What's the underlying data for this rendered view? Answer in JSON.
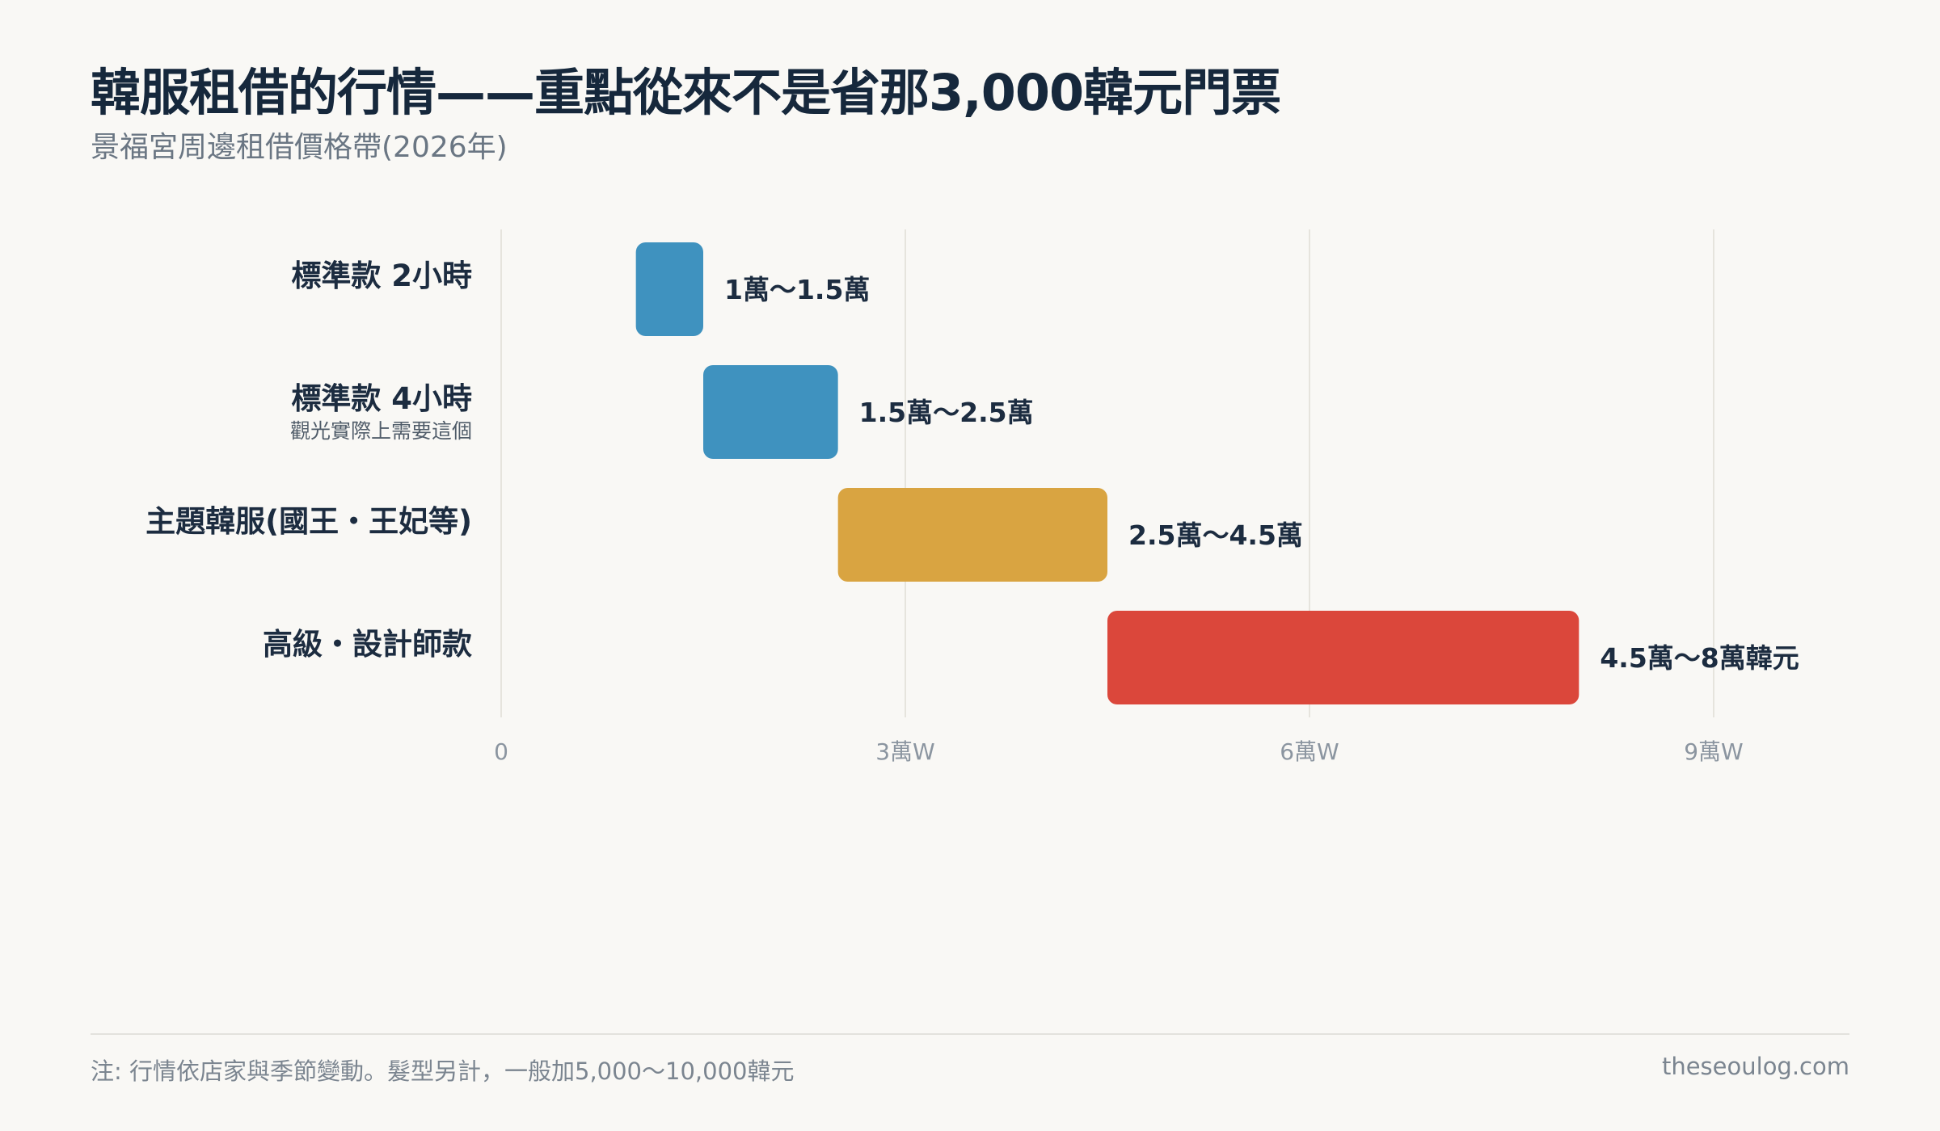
{
  "title": "韓服租借的行情——重點從來不是省那3,000韓元門票",
  "subtitle": "景福宮周邊租借價格帶(2026年)",
  "footer": {
    "note": "注: 行情依店家與季節變動。髮型另計，一般加5,000〜10,000韓元",
    "site": "theseoulog.com"
  },
  "chart_data": {
    "type": "bar",
    "orientation": "horizontal-range",
    "categories": [
      {
        "label": "標準款 2小時",
        "sublabel": ""
      },
      {
        "label": "標準款 4小時",
        "sublabel": "觀光實際上需要這個"
      },
      {
        "label": "主題韓服(國王・王妃等)",
        "sublabel": ""
      },
      {
        "label": "高級・設計師款",
        "sublabel": ""
      }
    ],
    "ranges": [
      {
        "low": 10000,
        "high": 15000,
        "label": "1萬〜1.5萬",
        "color": "#3f92bf"
      },
      {
        "low": 15000,
        "high": 25000,
        "label": "1.5萬〜2.5萬",
        "color": "#3f92bf"
      },
      {
        "low": 25000,
        "high": 45000,
        "label": "2.5萬〜4.5萬",
        "color": "#d9a441"
      },
      {
        "low": 45000,
        "high": 80000,
        "label": "4.5萬〜8萬韓元",
        "color": "#db473b"
      }
    ],
    "x_ticks": [
      {
        "value": 0,
        "label": "0"
      },
      {
        "value": 30000,
        "label": "3萬W"
      },
      {
        "value": 60000,
        "label": "6萬W"
      },
      {
        "value": 90000,
        "label": "9萬W"
      }
    ],
    "xlim": [
      0,
      90000
    ],
    "grid": true,
    "legend": "none"
  }
}
